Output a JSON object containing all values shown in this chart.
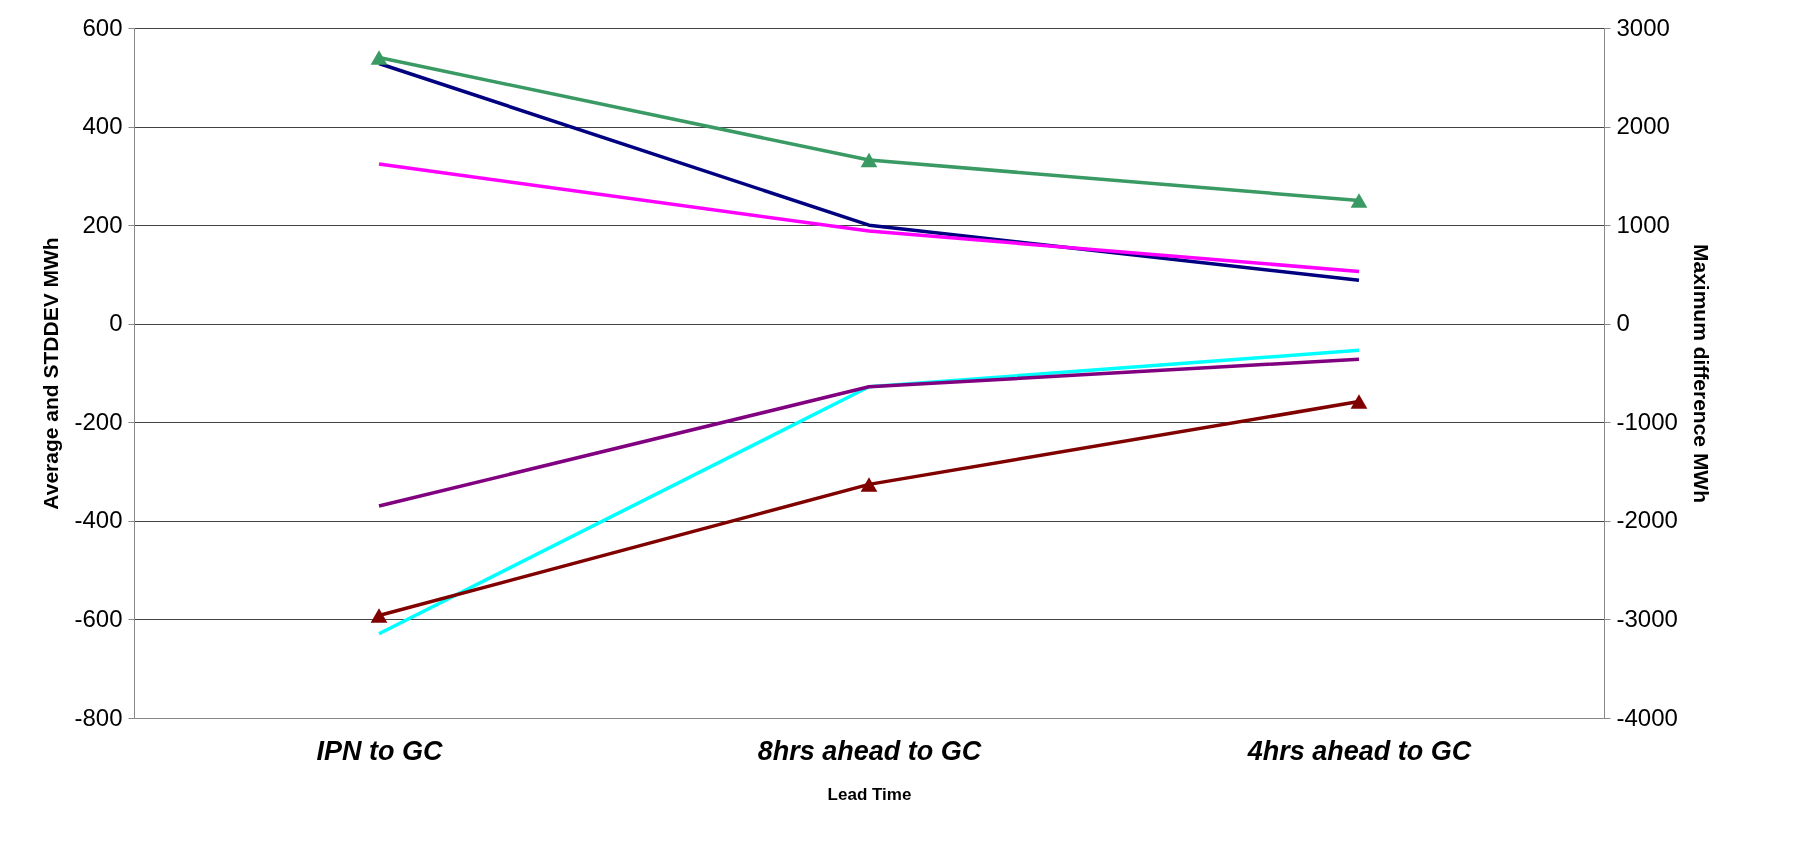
{
  "chart_data": {
    "type": "line",
    "xlabel": "Lead Time",
    "ylabel": "Average and STDDEV MWh",
    "y2label": "Maximum difference MWh",
    "categories": [
      "IPN to GC",
      "8hrs ahead to GC",
      "4hrs ahead to GC"
    ],
    "series": [
      {
        "color": "#3a9a64",
        "values": [
          2700,
          1660,
          1250
        ],
        "axis": "y2",
        "marker": "triangle"
      },
      {
        "color": "#000080",
        "values": [
          528,
          200,
          88
        ]
      },
      {
        "color": "#ff00ff",
        "values": [
          324,
          188,
          106
        ]
      },
      {
        "color": "#00ffff",
        "values": [
          -629,
          -128,
          -54
        ]
      },
      {
        "color": "#800080",
        "values": [
          -370,
          -128,
          -72
        ]
      },
      {
        "color": "#800000",
        "values": [
          -2960,
          -1630,
          -790
        ],
        "axis": "y2",
        "marker": "triangle"
      }
    ],
    "ylim": [
      -800,
      600
    ],
    "yticks": [
      -800,
      -600,
      -400,
      -200,
      0,
      200,
      400,
      600
    ],
    "y2lim": [
      -4000,
      3000
    ],
    "y2ticks": [
      -4000,
      -3000,
      -2000,
      -1000,
      0,
      1000,
      2000,
      3000
    ],
    "grid": "y",
    "legend": false,
    "marker": "none",
    "line_style": "solid"
  }
}
